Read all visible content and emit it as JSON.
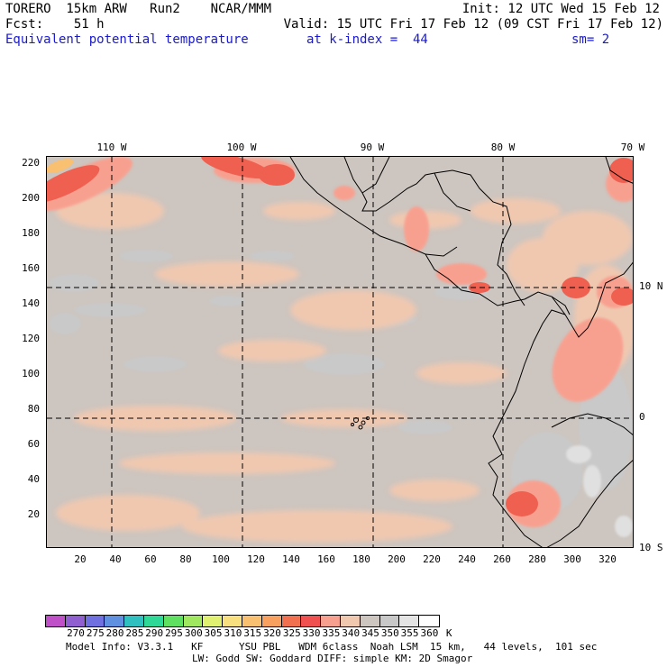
{
  "header": {
    "model": "TORERO  15km ARW   Run2    NCAR/MMM",
    "init": "Init: 12 UTC Wed 15 Feb 12",
    "fcst": "Fcst:    51 h",
    "valid": "Valid: 15 UTC Fri 17 Feb 12 (09 CST Fri 17 Feb 12)",
    "field": "Equivalent potential temperature",
    "level": "at k-index =  44",
    "smooth": "sm= 2"
  },
  "axes": {
    "lon_labels": [
      "110 W",
      "100 W",
      "90 W",
      "80 W",
      "70 W"
    ],
    "lat_labels": [
      "10 N",
      "0",
      "10 S"
    ],
    "y_ticks": [
      "220",
      "200",
      "180",
      "160",
      "140",
      "120",
      "100",
      "80",
      "60",
      "40",
      "20"
    ],
    "x_ticks": [
      "20",
      "40",
      "60",
      "80",
      "100",
      "120",
      "140",
      "160",
      "180",
      "200",
      "220",
      "240",
      "260",
      "280",
      "300",
      "320"
    ]
  },
  "colorbar": {
    "labels": [
      "270",
      "275",
      "280",
      "285",
      "290",
      "295",
      "300",
      "305",
      "310",
      "315",
      "320",
      "325",
      "330",
      "335",
      "340",
      "345",
      "350",
      "355",
      "360",
      "K"
    ],
    "colors": [
      "#c050c8",
      "#9060d0",
      "#7070e0",
      "#6090e0",
      "#30c0c0",
      "#30d898",
      "#60e060",
      "#a0e860",
      "#e0f070",
      "#f8e080",
      "#f8c070",
      "#f8a060",
      "#f07050",
      "#f05050",
      "#f8a090",
      "#f0c8b0",
      "#cdc5bf",
      "#c8c8c8",
      "#e4e4e4",
      "#ffffff"
    ]
  },
  "footer": {
    "line1": "Model Info: V3.3.1   KF      YSU PBL   WDM 6class  Noah LSM  15 km,   44 levels,  101 sec",
    "line2": "LW: Godd SW: Goddard DIFF: simple KM: 2D Smagor"
  }
}
